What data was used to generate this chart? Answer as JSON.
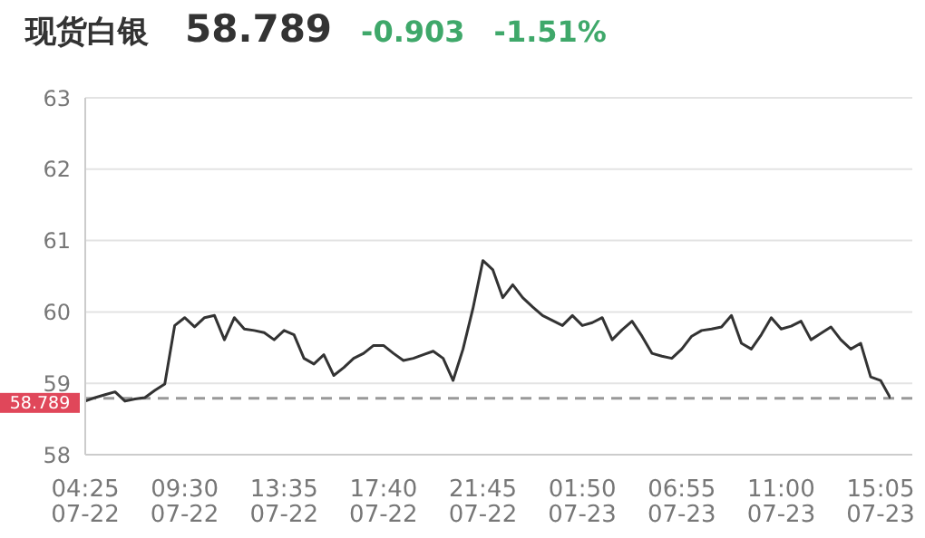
{
  "chart_data": {
    "type": "line",
    "title": "现货白银",
    "subtitle": "58.789",
    "annotations": [
      "-0.903",
      "-1.51%"
    ],
    "categories": [
      "04:25\n07-22",
      null,
      null,
      null,
      null,
      null,
      null,
      null,
      null,
      null,
      "09:30\n07-22",
      null,
      null,
      null,
      null,
      null,
      null,
      null,
      null,
      null,
      "13:35\n07-22",
      null,
      null,
      null,
      null,
      null,
      null,
      null,
      null,
      null,
      "17:40\n07-22",
      null,
      null,
      null,
      null,
      null,
      null,
      null,
      null,
      null,
      "21:45\n07-22",
      null,
      null,
      null,
      null,
      null,
      null,
      null,
      null,
      null,
      "01:50\n07-23",
      null,
      null,
      null,
      null,
      null,
      null,
      null,
      null,
      null,
      "06:55\n07-23",
      null,
      null,
      null,
      null,
      null,
      null,
      null,
      null,
      null,
      "11:00\n07-23",
      null,
      null,
      null,
      null,
      null,
      null,
      null,
      null,
      null,
      "15:05\n07-23",
      null
    ],
    "series": [
      {
        "color": "#333333",
        "values": [
          58.75,
          58.8,
          58.84,
          58.88,
          58.75,
          58.78,
          58.8,
          58.9,
          58.99,
          59.81,
          59.92,
          59.79,
          59.92,
          59.95,
          59.61,
          59.92,
          59.76,
          59.74,
          59.71,
          59.61,
          59.74,
          59.68,
          59.35,
          59.27,
          59.4,
          59.11,
          59.22,
          59.35,
          59.42,
          59.53,
          59.53,
          59.42,
          59.32,
          59.35,
          59.4,
          59.45,
          59.35,
          59.04,
          59.48,
          60.05,
          60.72,
          60.59,
          60.2,
          60.38,
          60.2,
          60.07,
          59.95,
          59.88,
          59.81,
          59.95,
          59.81,
          59.85,
          59.92,
          59.61,
          59.75,
          59.87,
          59.66,
          59.42,
          59.38,
          59.35,
          59.48,
          59.66,
          59.74,
          59.76,
          59.79,
          59.95,
          59.56,
          59.48,
          59.68,
          59.92,
          59.76,
          59.8,
          59.87,
          59.61,
          59.7,
          59.79,
          59.61,
          59.48,
          59.56,
          59.09,
          59.04,
          58.79
        ]
      }
    ],
    "ylim": [
      58,
      63
    ],
    "yticks": [
      58,
      59,
      60,
      61,
      62,
      63
    ],
    "grid": "y",
    "marker": "none",
    "line_style": "solid",
    "ref_lines": [
      {
        "axis": "y",
        "value": 58.789,
        "label": "58.789",
        "color": "#999999",
        "line_style": "dashed"
      }
    ]
  }
}
